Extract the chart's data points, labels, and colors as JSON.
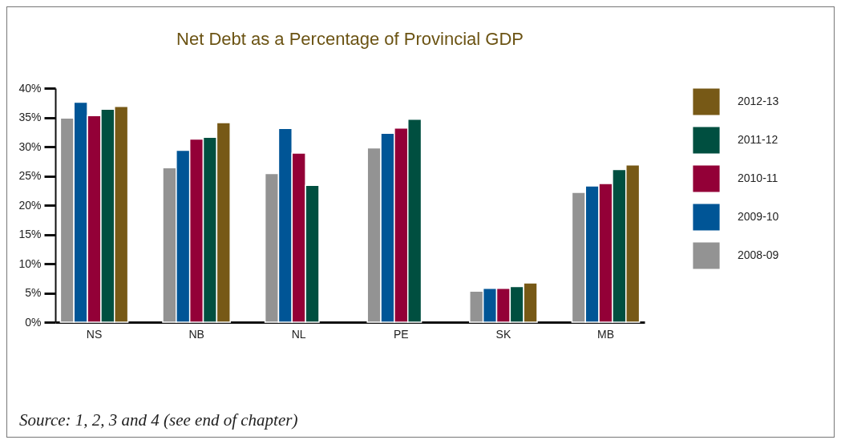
{
  "chart_data": {
    "type": "bar",
    "title": "Net Debt as a Percentage of Provincial GDP",
    "categories": [
      "NS",
      "NB",
      "NL",
      "PE",
      "SK",
      "MB"
    ],
    "series": [
      {
        "name": "2008-09",
        "color": "#939393",
        "values": [
          34.9,
          26.4,
          25.4,
          29.8,
          5.3,
          22.2
        ]
      },
      {
        "name": "2009-10",
        "color": "#005596",
        "values": [
          37.6,
          29.4,
          33.1,
          32.3,
          5.8,
          23.3
        ]
      },
      {
        "name": "2010-11",
        "color": "#930037",
        "values": [
          35.3,
          31.3,
          28.9,
          33.2,
          5.8,
          23.7
        ]
      },
      {
        "name": "2011-12",
        "color": "#004f40",
        "values": [
          36.4,
          31.6,
          23.4,
          34.7,
          6.1,
          26.1
        ]
      },
      {
        "name": "2012-13",
        "color": "#775916",
        "values": [
          36.9,
          34.1,
          null,
          null,
          6.7,
          26.9
        ]
      }
    ],
    "ylim": [
      0,
      40
    ],
    "yticks": [
      {
        "value": 0,
        "label": "0%"
      },
      {
        "value": 5,
        "label": "5%"
      },
      {
        "value": 10,
        "label": "10%"
      },
      {
        "value": 15,
        "label": "15%"
      },
      {
        "value": 20,
        "label": "20%"
      },
      {
        "value": 25,
        "label": "25%"
      },
      {
        "value": 30,
        "label": "30%"
      },
      {
        "value": 35,
        "label": "35%"
      },
      {
        "value": 40,
        "label": "40%"
      }
    ],
    "grid": false,
    "legend": "right",
    "annotations": [
      "Source:  1, 2, 3 and 4 (see end of chapter)"
    ]
  }
}
